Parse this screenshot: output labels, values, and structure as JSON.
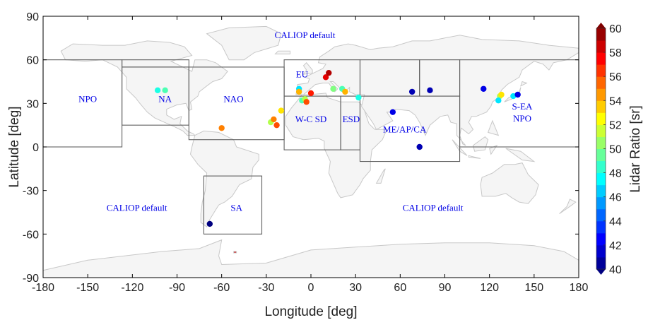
{
  "map": {
    "x_axis": {
      "label": "Longitude [deg]",
      "range": [
        -180,
        180
      ],
      "ticks": [
        -180,
        -150,
        -120,
        -90,
        -60,
        -30,
        0,
        30,
        60,
        90,
        120,
        150,
        180
      ]
    },
    "y_axis": {
      "label": "Latitude  [deg]",
      "range": [
        -90,
        90
      ],
      "ticks": [
        -90,
        -60,
        -30,
        0,
        30,
        60,
        90
      ]
    },
    "colorbar": {
      "label": "Lidar Ratio [sr]",
      "range": [
        40,
        60
      ],
      "ticks": [
        40,
        42,
        44,
        46,
        48,
        50,
        52,
        54,
        56,
        58,
        60
      ],
      "colormap": "jet"
    },
    "regions": [
      {
        "id": "NPO",
        "label": "NPO",
        "lon": [
          -180,
          -127
        ],
        "lat": [
          0,
          60
        ],
        "label_lon": -150,
        "label_lat": 31
      },
      {
        "id": "NA",
        "label": "NA",
        "lon": [
          -127,
          -82
        ],
        "lat": [
          15,
          55
        ],
        "label_lon": -98,
        "label_lat": 31
      },
      {
        "id": "NAO",
        "label": "NAO",
        "lon": [
          -82,
          -18
        ],
        "lat": [
          5,
          55
        ],
        "label_lon": -52,
        "label_lat": 31
      },
      {
        "id": "EU",
        "label": "EU",
        "lon": [
          -18,
          33
        ],
        "lat": [
          35,
          60
        ],
        "label_lon": -6,
        "label_lat": 48
      },
      {
        "id": "WCSD",
        "label": "W-C SD",
        "lon": [
          -18,
          20
        ],
        "lat": [
          -2,
          35
        ],
        "label_lon": 0,
        "label_lat": 17
      },
      {
        "id": "ESD",
        "label": "ESD",
        "lon": [
          20,
          33
        ],
        "lat": [
          -2,
          35
        ],
        "label_lon": 27,
        "label_lat": 17
      },
      {
        "id": "MEAPCA",
        "label": "ME/AP/CA",
        "lon": [
          33,
          100
        ],
        "lat": [
          -10,
          35
        ],
        "label_lon": 63,
        "label_lat": 10
      },
      {
        "id": "SEANPO",
        "label": "S-EA\nNPO",
        "lon": [
          100,
          180
        ],
        "lat": [
          0,
          60
        ],
        "label_lon": 142,
        "label_lat": 22
      },
      {
        "id": "SA",
        "label": "SA",
        "lon": [
          -72,
          -33
        ],
        "lat": [
          -60,
          -20
        ],
        "label_lon": -50,
        "label_lat": -44
      }
    ],
    "extra_boxes": [
      {
        "lon": [
          -127,
          -82
        ],
        "lat": [
          55,
          60
        ]
      },
      {
        "lon": [
          33,
          73
        ],
        "lat": [
          35,
          60
        ]
      },
      {
        "lon": [
          73,
          100
        ],
        "lat": [
          35,
          60
        ]
      }
    ],
    "default_labels": [
      {
        "text": "CALIOP default",
        "lon": -4,
        "lat": 75
      },
      {
        "text": "CALIOP default",
        "lon": -117,
        "lat": -44
      },
      {
        "text": "CALIOP default",
        "lon": 82,
        "lat": -44
      }
    ],
    "points": [
      {
        "lon": -103,
        "lat": 39,
        "lr": 48
      },
      {
        "lon": -98,
        "lat": 39,
        "lr": 49
      },
      {
        "lon": -60,
        "lat": 13,
        "lr": 55
      },
      {
        "lon": -27,
        "lat": 17,
        "lr": 51
      },
      {
        "lon": -25,
        "lat": 19,
        "lr": 55
      },
      {
        "lon": -23,
        "lat": 15,
        "lr": 56
      },
      {
        "lon": -20,
        "lat": 25,
        "lr": 53
      },
      {
        "lon": -8,
        "lat": 40,
        "lr": 47
      },
      {
        "lon": -8,
        "lat": 38,
        "lr": 54
      },
      {
        "lon": -6,
        "lat": 32,
        "lr": 49
      },
      {
        "lon": -4,
        "lat": 33,
        "lr": 51
      },
      {
        "lon": -3,
        "lat": 31,
        "lr": 56
      },
      {
        "lon": 0,
        "lat": 37,
        "lr": 57
      },
      {
        "lon": 10,
        "lat": 48,
        "lr": 58
      },
      {
        "lon": 12,
        "lat": 51,
        "lr": 59
      },
      {
        "lon": 15,
        "lat": 40,
        "lr": 50
      },
      {
        "lon": 21,
        "lat": 40,
        "lr": 49
      },
      {
        "lon": 23,
        "lat": 38,
        "lr": 54
      },
      {
        "lon": 32,
        "lat": 34,
        "lr": 48
      },
      {
        "lon": 55,
        "lat": 24,
        "lr": 42
      },
      {
        "lon": 68,
        "lat": 38,
        "lr": 41
      },
      {
        "lon": 73,
        "lat": 0,
        "lr": 41
      },
      {
        "lon": 80,
        "lat": 39,
        "lr": 41
      },
      {
        "lon": 116,
        "lat": 40,
        "lr": 42
      },
      {
        "lon": 127,
        "lat": 35,
        "lr": 51
      },
      {
        "lon": 126,
        "lat": 32,
        "lr": 47
      },
      {
        "lon": 128,
        "lat": 36,
        "lr": 53
      },
      {
        "lon": 136,
        "lat": 35,
        "lr": 47
      },
      {
        "lon": 139,
        "lat": 36,
        "lr": 42
      },
      {
        "lon": -68,
        "lat": -53,
        "lr": 40
      }
    ]
  }
}
